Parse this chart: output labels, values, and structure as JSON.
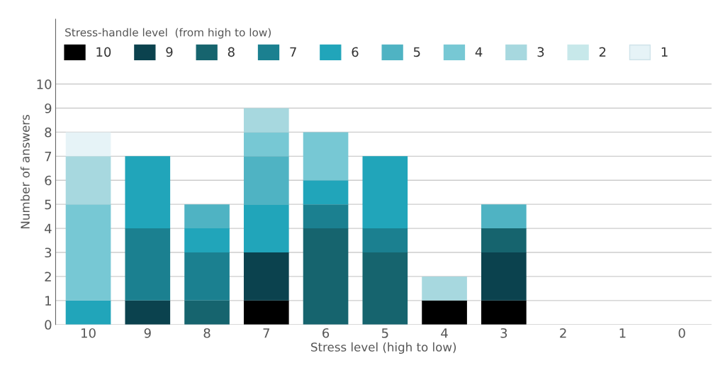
{
  "chart_data": {
    "type": "bar",
    "stacked": true,
    "xlabel": "Stress level (high to low)",
    "ylabel": "Number of answers",
    "legend_title": "Stress-handle level  (from high to low)",
    "legend": "top left",
    "grid": "y",
    "categories": [
      "10",
      "9",
      "8",
      "7",
      "6",
      "5",
      "4",
      "3",
      "2",
      "1",
      "0"
    ],
    "ylim": [
      0,
      12.7
    ],
    "yticks": [
      0,
      1,
      2,
      3,
      4,
      5,
      6,
      7,
      8,
      9,
      10
    ],
    "series": [
      {
        "name": "10",
        "color": "#000000",
        "values": [
          0,
          0,
          0,
          1,
          0,
          0,
          1,
          1,
          0,
          0,
          0
        ]
      },
      {
        "name": "9",
        "color": "#0b424e",
        "values": [
          0,
          1,
          0,
          2,
          0,
          0,
          0,
          2,
          0,
          0,
          0
        ]
      },
      {
        "name": "8",
        "color": "#16646e",
        "values": [
          0,
          0,
          1,
          0,
          4,
          3,
          0,
          1,
          0,
          0,
          0
        ]
      },
      {
        "name": "7",
        "color": "#1b8090",
        "values": [
          0,
          3,
          2,
          0,
          1,
          1,
          0,
          0,
          0,
          0,
          0
        ]
      },
      {
        "name": "6",
        "color": "#21a5ba",
        "values": [
          1,
          3,
          1,
          2,
          1,
          3,
          0,
          0,
          0,
          0,
          0
        ]
      },
      {
        "name": "5",
        "color": "#4fb3c3",
        "values": [
          0,
          0,
          1,
          2,
          0,
          0,
          0,
          1,
          0,
          0,
          0
        ]
      },
      {
        "name": "4",
        "color": "#77c8d4",
        "values": [
          4,
          0,
          0,
          1,
          2,
          0,
          0,
          0,
          0,
          0,
          0
        ]
      },
      {
        "name": "3",
        "color": "#a7d8df",
        "values": [
          2,
          0,
          0,
          1,
          0,
          0,
          1,
          0,
          0,
          0,
          0
        ]
      },
      {
        "name": "2",
        "color": "#c7e8ea",
        "values": [
          0,
          0,
          0,
          0,
          0,
          0,
          0,
          0,
          0,
          0,
          0
        ]
      },
      {
        "name": "1",
        "color": "#e6f3f7",
        "values": [
          1,
          0,
          0,
          0,
          0,
          0,
          0,
          0,
          0,
          0,
          0
        ]
      }
    ]
  }
}
